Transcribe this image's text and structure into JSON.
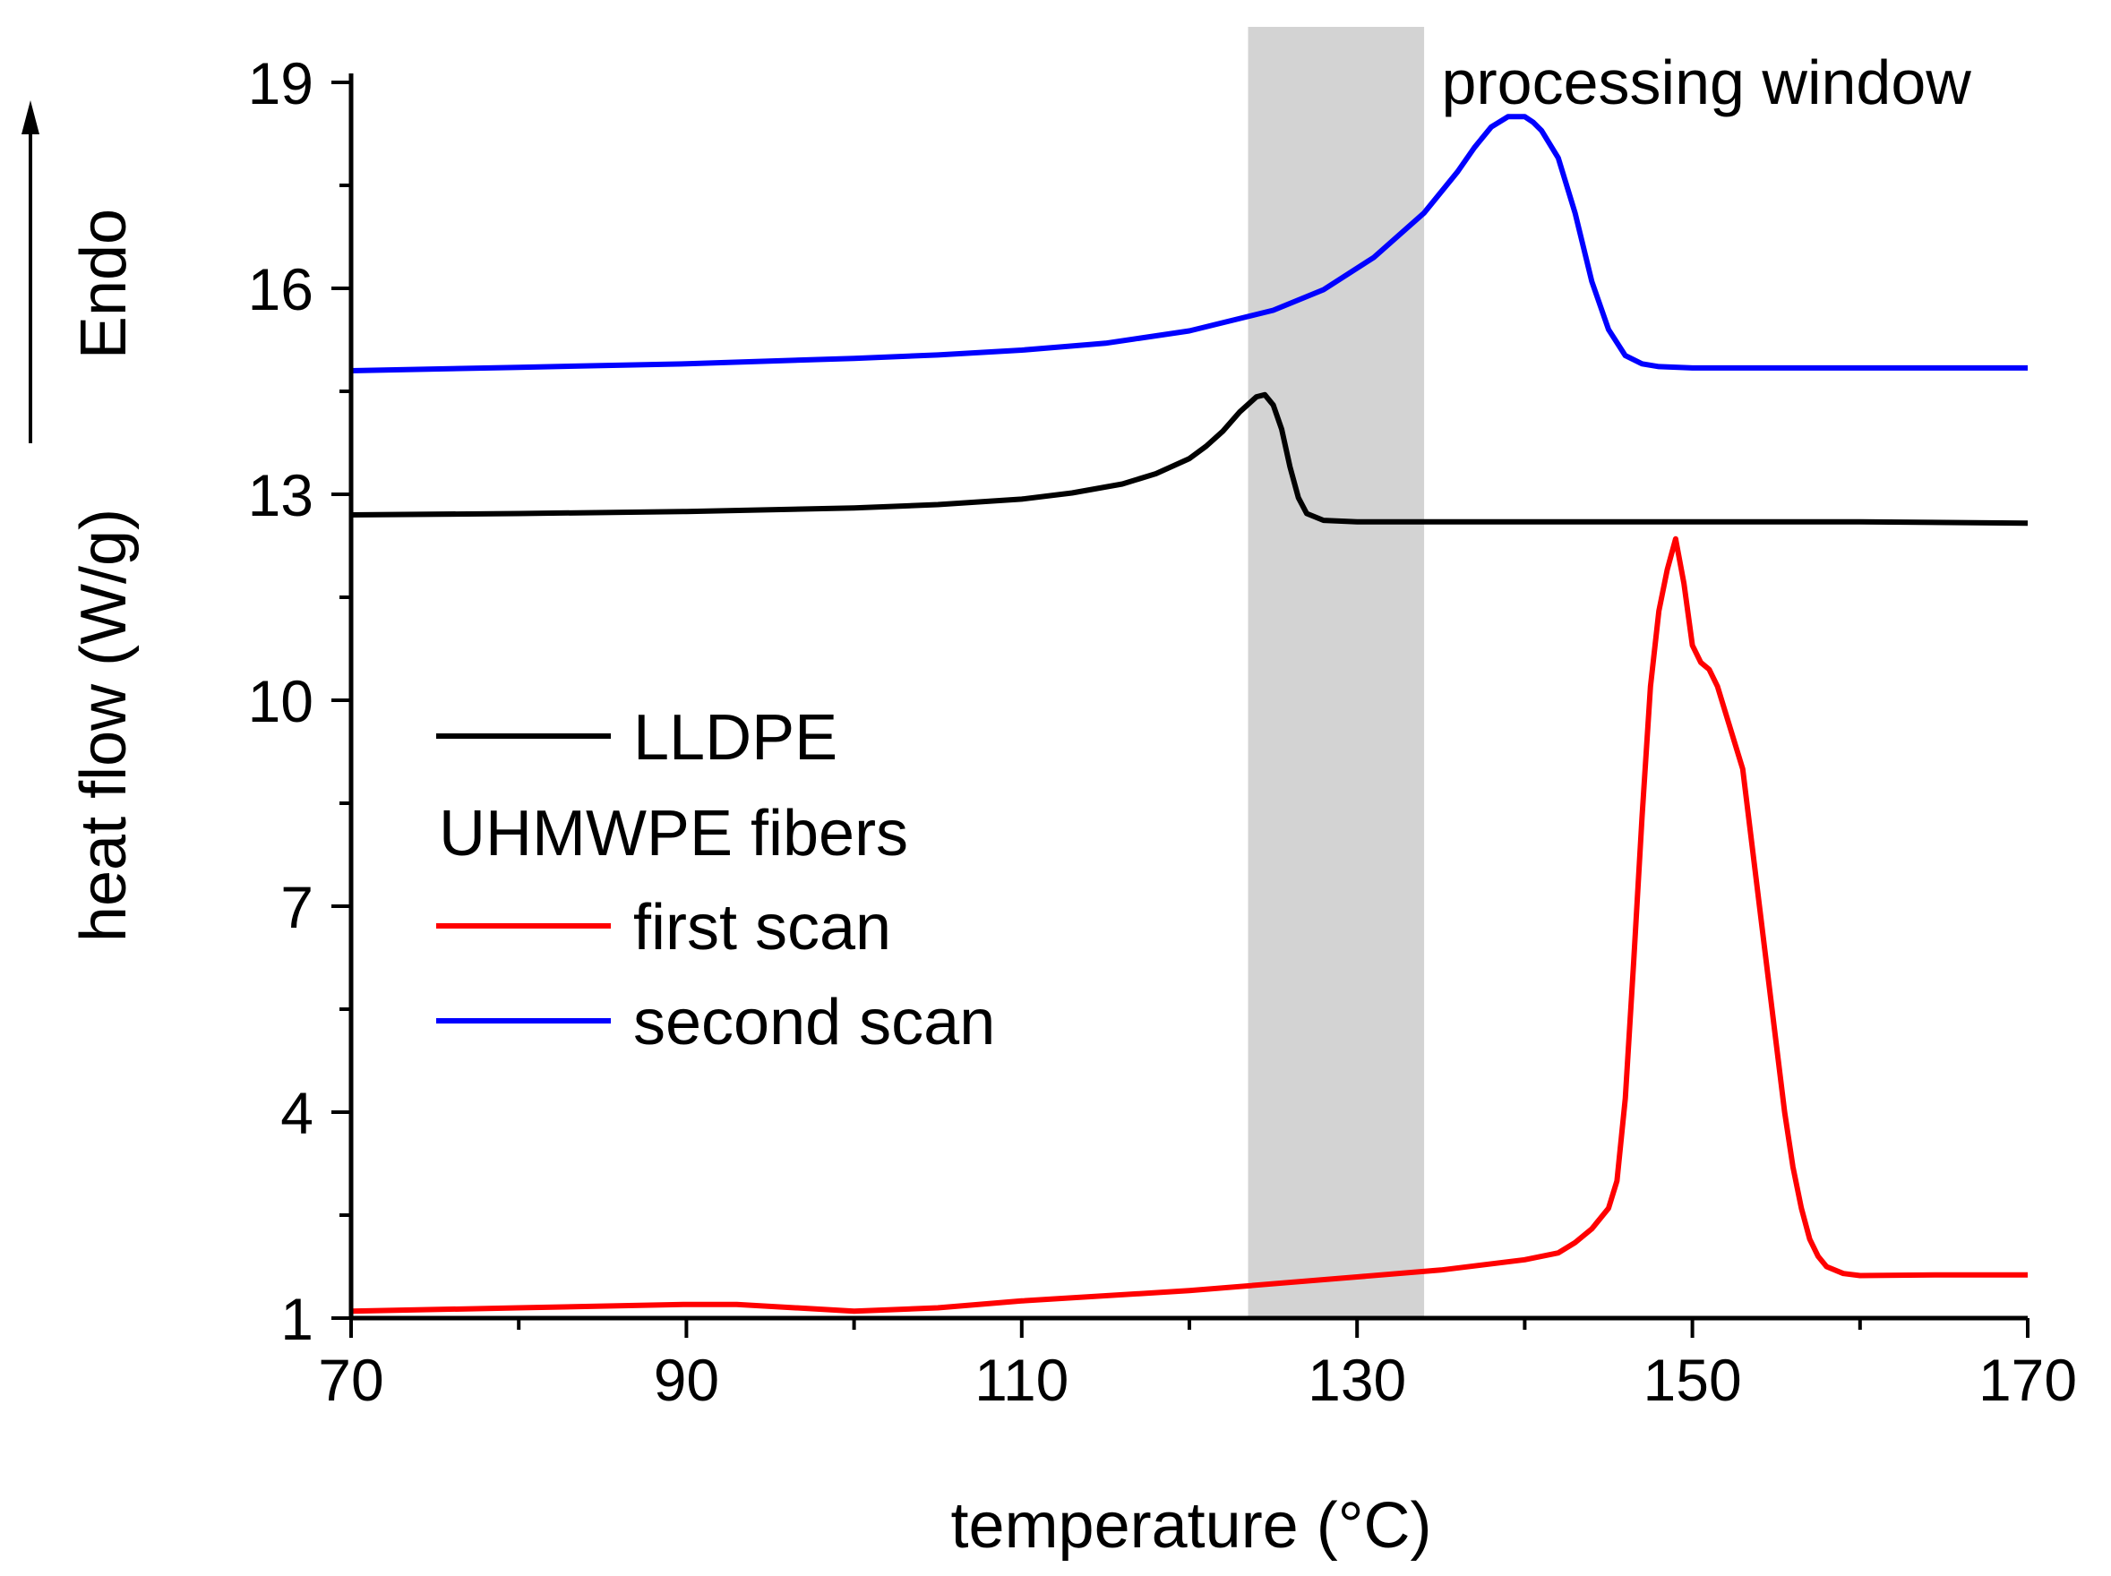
{
  "chart_data": {
    "type": "line",
    "title": "",
    "xlabel": "temperature (°C)",
    "ylabel": "heat flow (W/g)",
    "endo_label": "Endo",
    "xlim": [
      70,
      170
    ],
    "ylim": [
      1,
      19
    ],
    "xticks": [
      70,
      90,
      110,
      130,
      150,
      170
    ],
    "yticks": [
      1,
      4,
      7,
      10,
      13,
      16,
      19
    ],
    "grid": false,
    "legend_position": "center-left",
    "legend": {
      "entry1": "LLDPE",
      "header": "UHMWPE fibers",
      "entry2": "first scan",
      "entry3": "second scan"
    },
    "shaded_region": {
      "x_start": 123.5,
      "x_end": 134.0,
      "color": "#d3d3d3"
    },
    "annotations": [
      {
        "text": "processing window",
        "x": 134.5,
        "y": 19.0
      }
    ],
    "series": [
      {
        "name": "LLDPE",
        "color": "#000000",
        "x": [
          70,
          80,
          90,
          100,
          105,
          110,
          113,
          116,
          118,
          120,
          121,
          122,
          123,
          124,
          124.5,
          125,
          125.5,
          126,
          126.5,
          127,
          128,
          130,
          140,
          150,
          160,
          170
        ],
        "y": [
          12.7,
          12.72,
          12.75,
          12.8,
          12.85,
          12.93,
          13.02,
          13.15,
          13.3,
          13.52,
          13.7,
          13.92,
          14.2,
          14.42,
          14.45,
          14.3,
          13.95,
          13.4,
          12.95,
          12.72,
          12.62,
          12.6,
          12.6,
          12.6,
          12.6,
          12.58
        ]
      },
      {
        "name": "first scan",
        "color": "#ff0000",
        "x": [
          70,
          80,
          90,
          93,
          100,
          105,
          110,
          120,
          130,
          135,
          140,
          142,
          143,
          144,
          145,
          145.5,
          146,
          146.5,
          147,
          147.5,
          148,
          148.5,
          149,
          149.5,
          150,
          150.5,
          151,
          151.5,
          152,
          153,
          154,
          155,
          155.5,
          156,
          156.5,
          157,
          157.5,
          158,
          159,
          160,
          165,
          170
        ],
        "y": [
          1.1,
          1.15,
          1.2,
          1.2,
          1.1,
          1.15,
          1.25,
          1.4,
          1.6,
          1.7,
          1.85,
          1.95,
          2.1,
          2.3,
          2.6,
          3.0,
          4.2,
          6.2,
          8.3,
          10.2,
          11.3,
          11.9,
          12.35,
          11.7,
          10.8,
          10.55,
          10.45,
          10.2,
          9.8,
          9.0,
          7.0,
          5.0,
          4.0,
          3.2,
          2.6,
          2.15,
          1.9,
          1.75,
          1.65,
          1.62,
          1.63,
          1.63
        ]
      },
      {
        "name": "second scan",
        "color": "#0000ff",
        "x": [
          70,
          80,
          90,
          100,
          105,
          110,
          115,
          120,
          125,
          128,
          131,
          134,
          136,
          137,
          138,
          139,
          140,
          140.5,
          141,
          142,
          143,
          144,
          145,
          146,
          147,
          148,
          150,
          160,
          170
        ],
        "y": [
          14.8,
          14.85,
          14.9,
          14.98,
          15.03,
          15.1,
          15.2,
          15.38,
          15.68,
          15.98,
          16.45,
          17.1,
          17.7,
          18.05,
          18.35,
          18.5,
          18.5,
          18.42,
          18.3,
          17.9,
          17.1,
          16.1,
          15.4,
          15.02,
          14.9,
          14.86,
          14.84,
          14.84,
          14.84
        ]
      }
    ]
  }
}
